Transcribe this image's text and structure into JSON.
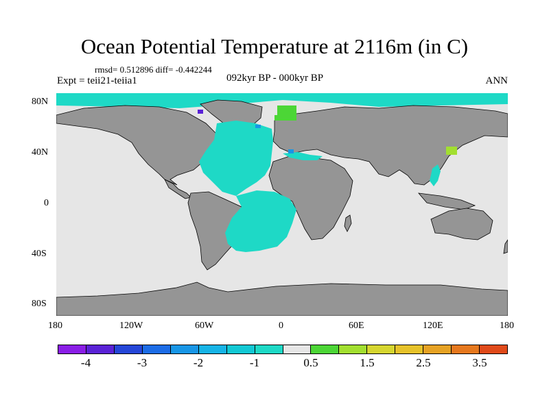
{
  "title": "Ocean Potential Temperature at 2116m (in C)",
  "stats_text": "rmsd= 0.512896 diff= -0.442244",
  "experiment": "Expt = teii21-teiia1",
  "period": "092kyr BP - 000kyr BP",
  "season": "ANN",
  "lat_labels": [
    "80N",
    "40N",
    "0",
    "40S",
    "80S"
  ],
  "lon_labels": [
    "180",
    "120W",
    "60W",
    "0",
    "60E",
    "120E",
    "180"
  ],
  "colors": {
    "land": "#959595",
    "ocean_neutral": "#e6e6e6",
    "cyan_anomaly": "#1ed9c6",
    "coastline": "#000000"
  },
  "colorbar": {
    "colors": [
      "#8a1ee6",
      "#5a22d6",
      "#2546d8",
      "#1c6ce6",
      "#1896e6",
      "#16b4e6",
      "#12c8d4",
      "#1ed9c6",
      "#e6e6e6",
      "#4cd636",
      "#a2df30",
      "#d6d630",
      "#e6c22a",
      "#e6a224",
      "#e6781e",
      "#e04a1a"
    ],
    "labels": [
      "-4",
      "-3",
      "-2",
      "-1",
      "0.5",
      "1.5",
      "2.5",
      "3.5"
    ]
  }
}
